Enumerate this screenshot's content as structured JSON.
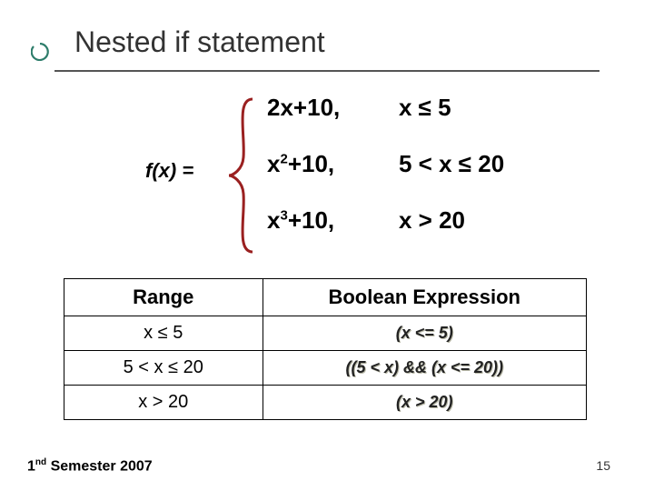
{
  "title": "Nested if statement",
  "bullet": {
    "stroke": "#2e7d6b",
    "fill": "#ffffff"
  },
  "fx_label": "f(x) =",
  "brace": {
    "stroke": "#9a2020",
    "width": 3
  },
  "cases": [
    {
      "expr_html": "2x+10,",
      "cond": "x ≤  5"
    },
    {
      "expr_html": "x<sup>2</sup>+10,",
      "cond": "5 < x ≤  20"
    },
    {
      "expr_html": "x<sup>3</sup>+10,",
      "cond": "x >  20"
    }
  ],
  "table": {
    "headers": [
      "Range",
      "Boolean Expression"
    ],
    "rows": [
      {
        "range": "x ≤  5",
        "bool": "(x <= 5)"
      },
      {
        "range": "5 < x ≤  20",
        "bool": "((5 < x) && (x <= 20))"
      },
      {
        "range": "x >  20",
        "bool": "(x > 20)"
      }
    ]
  },
  "footer_html": "1<sup>nd</sup> Semester 2007",
  "page_number": "15"
}
